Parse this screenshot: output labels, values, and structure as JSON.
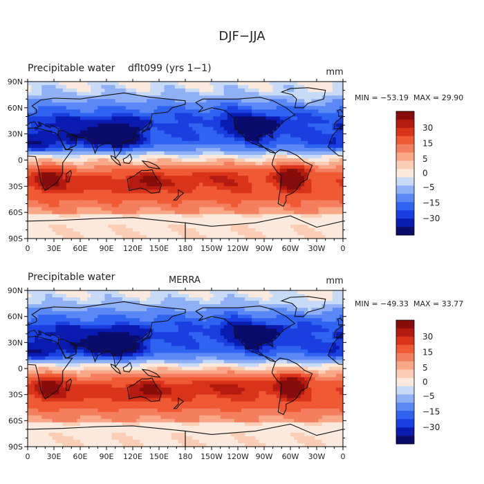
{
  "figure": {
    "title": "DJF−JJA"
  },
  "chart_data": [
    {
      "type": "heatmap",
      "title": "Precipitable water",
      "subtitle": "dflt099 (yrs 1−1)",
      "units": "mm",
      "stats": {
        "min_label": "MIN = −53.19",
        "max_label": "MAX =  29.90",
        "min": -53.19,
        "max": 29.9
      },
      "x_ticks": [
        "0",
        "30E",
        "60E",
        "90E",
        "120E",
        "150E",
        "180",
        "150W",
        "120W",
        "90W",
        "60W",
        "30W",
        "0"
      ],
      "y_ticks": [
        "90N",
        "60N",
        "30N",
        "0",
        "30S",
        "60S",
        "90S"
      ],
      "colorbar_labels": [
        "30",
        "15",
        "5",
        "0",
        "−5",
        "−15",
        "−30"
      ],
      "colorbar_levels": [
        -35,
        -30,
        -25,
        -20,
        -15,
        -10,
        -5,
        -2,
        2,
        5,
        10,
        15,
        20,
        25,
        30,
        35
      ],
      "projection": "global lat-lon",
      "summary": {
        "northern_hemisphere": "negative (blue), strongest over northern India, Southeast Asia, North Africa and North America",
        "southern_hemisphere": "positive (red), strongest over southern Africa, Australia and South America",
        "antarctica": "near zero"
      }
    },
    {
      "type": "heatmap",
      "title": "Precipitable water",
      "subtitle": "MERRA",
      "units": "mm",
      "stats": {
        "min_label": "MIN = −49.33",
        "max_label": "MAX =  33.77",
        "min": -49.33,
        "max": 33.77
      },
      "x_ticks": [
        "0",
        "30E",
        "60E",
        "90E",
        "120E",
        "150E",
        "180",
        "150W",
        "120W",
        "90W",
        "60W",
        "30W",
        "0"
      ],
      "y_ticks": [
        "90N",
        "60N",
        "30N",
        "0",
        "30S",
        "60S",
        "90S"
      ],
      "colorbar_labels": [
        "30",
        "15",
        "5",
        "0",
        "−5",
        "−15",
        "−30"
      ],
      "colorbar_levels": [
        -35,
        -30,
        -25,
        -20,
        -15,
        -10,
        -5,
        -2,
        2,
        5,
        10,
        15,
        20,
        25,
        30,
        35
      ],
      "projection": "global lat-lon",
      "summary": {
        "northern_hemisphere": "negative (blue), strongest over South/Southeast Asia and North Africa",
        "southern_hemisphere": "positive (red), strongest over southern Africa, Australia and South America",
        "antarctica": "near zero"
      }
    }
  ],
  "colors": {
    "palette": [
      "#0b0b6b",
      "#0a1bb0",
      "#1a3fe0",
      "#2f63f0",
      "#5a88f5",
      "#8fb0f5",
      "#c7dbf7",
      "#fbe9dd",
      "#fbcdb4",
      "#f8a887",
      "#f47f5e",
      "#ef5a34",
      "#d9341a",
      "#b31a10",
      "#870d0d"
    ]
  }
}
